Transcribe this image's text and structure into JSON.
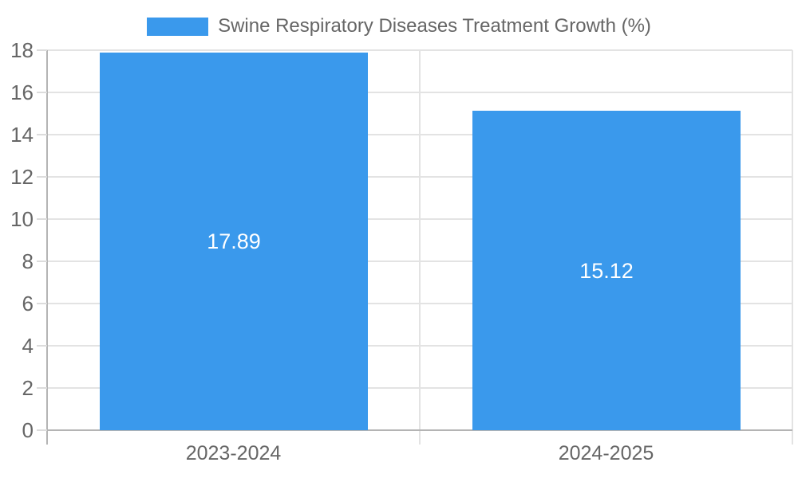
{
  "chart_data": {
    "type": "bar",
    "title": "Swine Respiratory Diseases Treatment Growth (%)",
    "categories": [
      "2023-2024",
      "2024-2025"
    ],
    "values": [
      17.89,
      15.12
    ],
    "value_labels": [
      "17.89",
      "15.12"
    ],
    "ylim": [
      0,
      18
    ],
    "ytick_step": 2,
    "ytick_labels": [
      "0",
      "2",
      "4",
      "6",
      "8",
      "10",
      "12",
      "14",
      "16",
      "18"
    ],
    "grid": true,
    "legend_position": "top",
    "colors": {
      "bar": "#3a99ec",
      "bar_label": "#ffffff",
      "axis_text": "#666666",
      "gridline": "#e3e3e3",
      "axis_border": "#b4b4b4"
    }
  },
  "legend": {
    "label": "Swine Respiratory Diseases Treatment Growth (%)",
    "swatch_icon": "legend-color-swatch"
  }
}
